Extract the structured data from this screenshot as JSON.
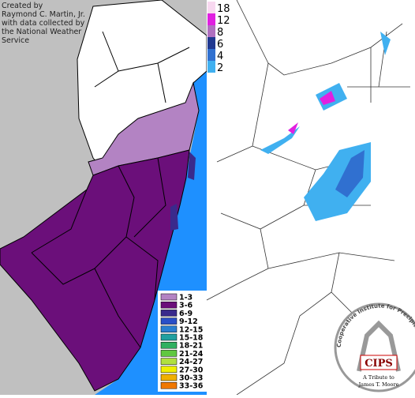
{
  "credit": [
    "Created by",
    "Raymond C. Martin, Jr.",
    "with data collected by",
    "the National Weather",
    "Service"
  ],
  "left_legend": [
    {
      "label": "1-3",
      "color": "#b383c3"
    },
    {
      "label": "3-6",
      "color": "#6b0f7a"
    },
    {
      "label": "6-9",
      "color": "#3a2a8c"
    },
    {
      "label": "9-12",
      "color": "#2a4fc8"
    },
    {
      "label": "12-15",
      "color": "#2a7fd0"
    },
    {
      "label": "15-18",
      "color": "#20a0a0"
    },
    {
      "label": "18-21",
      "color": "#30b060"
    },
    {
      "label": "21-24",
      "color": "#60c840"
    },
    {
      "label": "24-27",
      "color": "#b0e040"
    },
    {
      "label": "27-30",
      "color": "#f0f000"
    },
    {
      "label": "30-33",
      "color": "#f0b000"
    },
    {
      "label": "33-36",
      "color": "#f07800"
    }
  ],
  "right_scale": [
    {
      "value": 18,
      "color": "#f8d8f0"
    },
    {
      "value": 12,
      "color": "#e020e0"
    },
    {
      "value": 8,
      "color": "#b070c0"
    },
    {
      "value": 6,
      "color": "#203890"
    },
    {
      "value": 4,
      "color": "#3070d0"
    },
    {
      "value": 2,
      "color": "#40b0f0"
    }
  ],
  "logo": {
    "acronym": "CIPS",
    "name": "Cooperative Institute for Precipitation Systems",
    "tribute": "A Tribute to",
    "person": "James T. Moore"
  }
}
